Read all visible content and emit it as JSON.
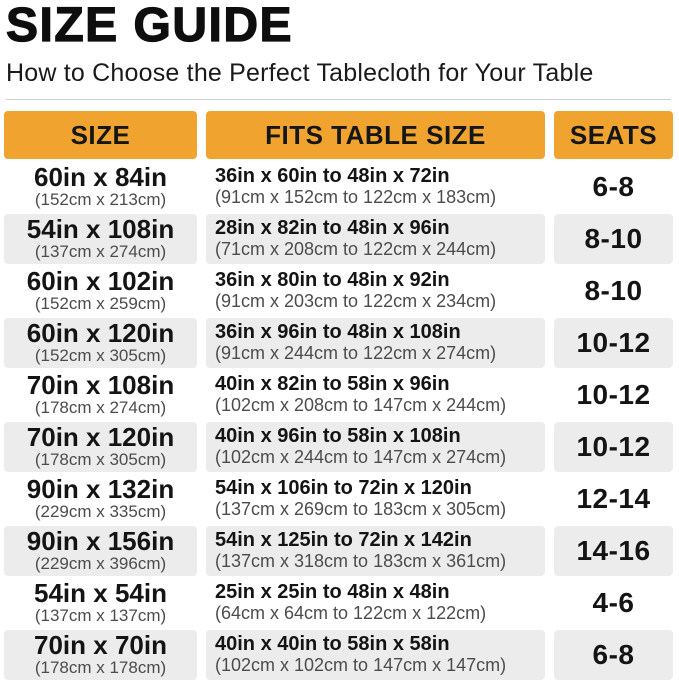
{
  "title": "SIZE GUIDE",
  "subtitle": "How to Choose the Perfect Tablecloth for Your Table",
  "colors": {
    "header_bg": "#F0A42F",
    "alt_row_bg": "#ECECEC",
    "text_primary": "#141414",
    "text_secondary": "#4C4C4C"
  },
  "chart_data": {
    "type": "table",
    "title": "SIZE GUIDE",
    "subtitle": "How to Choose the Perfect Tablecloth for Your Table",
    "columns": [
      "SIZE",
      "FITS TABLE SIZE",
      "SEATS"
    ],
    "rows": [
      {
        "size_in": "60in x 84in",
        "size_cm": "(152cm x 213cm)",
        "fits_in": "36in x 60in to 48in x 72in",
        "fits_cm": "(91cm x 152cm to 122cm x 183cm)",
        "seats": "6-8"
      },
      {
        "size_in": "54in x 108in",
        "size_cm": "(137cm x 274cm)",
        "fits_in": "28in x 82in to 48in x 96in",
        "fits_cm": "(71cm x 208cm to 122cm x 244cm)",
        "seats": "8-10"
      },
      {
        "size_in": "60in x 102in",
        "size_cm": "(152cm x 259cm)",
        "fits_in": "36in x 80in to 48in x 92in",
        "fits_cm": "(91cm x 203cm to 122cm x 234cm)",
        "seats": "8-10"
      },
      {
        "size_in": "60in x 120in",
        "size_cm": "(152cm x 305cm)",
        "fits_in": "36in x 96in to 48in x 108in",
        "fits_cm": "(91cm x 244cm to 122cm x 274cm)",
        "seats": "10-12"
      },
      {
        "size_in": "70in x 108in",
        "size_cm": "(178cm x 274cm)",
        "fits_in": "40in x 82in to 58in x 96in",
        "fits_cm": "(102cm x 208cm to 147cm x 244cm)",
        "seats": "10-12"
      },
      {
        "size_in": "70in x 120in",
        "size_cm": "(178cm x 305cm)",
        "fits_in": "40in x 96in to 58in x 108in",
        "fits_cm": "(102cm x 244cm to 147cm x 274cm)",
        "seats": "10-12"
      },
      {
        "size_in": "90in x 132in",
        "size_cm": "(229cm x 335cm)",
        "fits_in": "54in x 106in to 72in x 120in",
        "fits_cm": "(137cm x 269cm to 183cm x 305cm)",
        "seats": "12-14"
      },
      {
        "size_in": "90in x 156in",
        "size_cm": "(229cm x 396cm)",
        "fits_in": "54in x 125in to 72in x 142in",
        "fits_cm": "(137cm x 318cm to 183cm x 361cm)",
        "seats": "14-16"
      },
      {
        "size_in": "54in x 54in",
        "size_cm": "(137cm x 137cm)",
        "fits_in": "25in x 25in to 48in x 48in",
        "fits_cm": "(64cm x 64cm to 122cm x 122cm)",
        "seats": "4-6"
      },
      {
        "size_in": "70in x 70in",
        "size_cm": "(178cm x 178cm)",
        "fits_in": "40in x 40in to 58in x 58in",
        "fits_cm": "(102cm x 102cm to 147cm x 147cm)",
        "seats": "6-8"
      }
    ]
  }
}
